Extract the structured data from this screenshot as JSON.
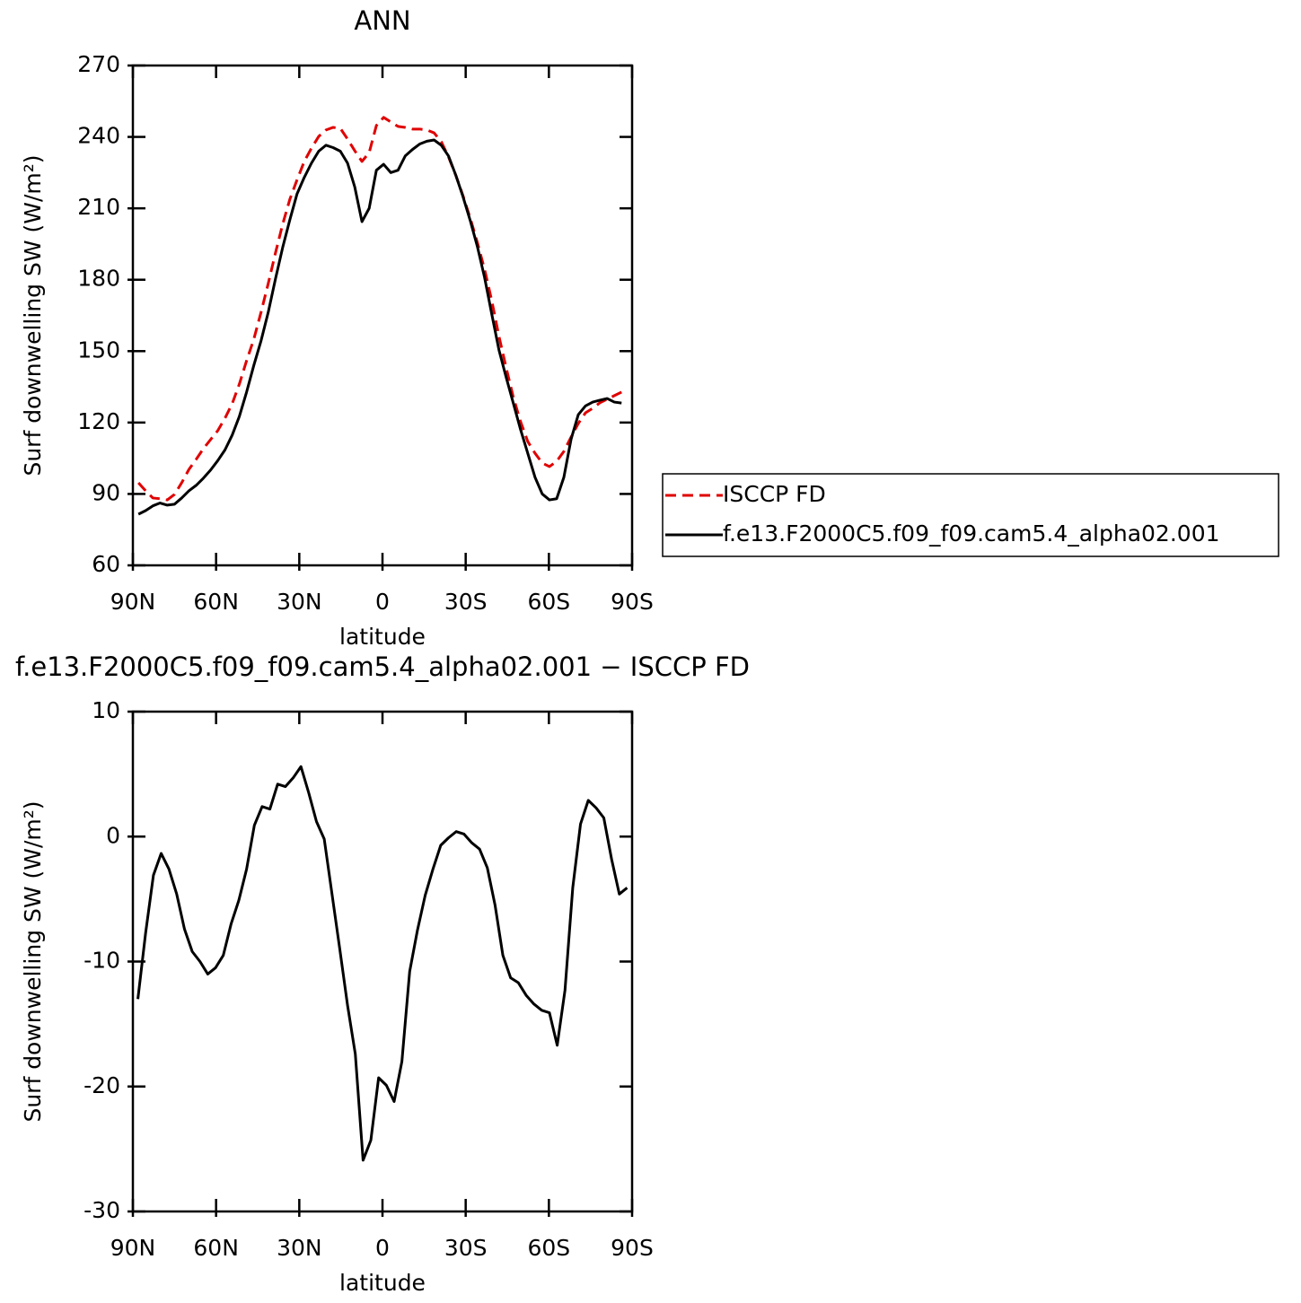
{
  "chart_data": [
    {
      "type": "line",
      "title": "ANN",
      "xlabel": "latitude",
      "ylabel": "Surf downwelling SW (W/m²)",
      "xlim": [
        90,
        -90
      ],
      "xticks": [
        {
          "value": 90,
          "label": "90N"
        },
        {
          "value": 60,
          "label": "60N"
        },
        {
          "value": 30,
          "label": "30N"
        },
        0,
        {
          "value": -30,
          "label": "30S"
        },
        {
          "value": -60,
          "label": "60S"
        },
        {
          "value": -90,
          "label": "90S"
        }
      ],
      "ylim": [
        60,
        270
      ],
      "yticks": [
        60,
        90,
        120,
        150,
        180,
        210,
        240,
        270
      ],
      "legend": "right",
      "x": [
        88,
        85.4,
        82.8,
        80.2,
        77.6,
        75,
        72.4,
        69.8,
        67.2,
        64.6,
        62,
        59.4,
        56.8,
        54.2,
        51.6,
        49,
        46.4,
        43.8,
        41.2,
        38.6,
        36,
        33.4,
        30.8,
        28.2,
        25.6,
        23,
        20.4,
        17.8,
        15.2,
        12.6,
        10,
        7.4,
        4.8,
        2.2,
        -0.4,
        -3,
        -5.6,
        -8.2,
        -10.8,
        -13.4,
        -16,
        -18.6,
        -21.2,
        -23.8,
        -26.4,
        -29,
        -31.6,
        -34.2,
        -36.8,
        -39.4,
        -42,
        -44.6,
        -47.2,
        -49.8,
        -52.4,
        -55,
        -57.6,
        -60.2,
        -62.8,
        -65.4,
        -68,
        -70.6,
        -73.2,
        -75.8,
        -78.4,
        -81,
        -83.6,
        -86.2
      ],
      "series": [
        {
          "name": "ISCCP FD",
          "color": "#e00000",
          "dash": true,
          "values": [
            94.7,
            91.3,
            88.3,
            88,
            87.5,
            89.8,
            94.7,
            100.3,
            104.5,
            109,
            112.8,
            116.6,
            121.8,
            127.9,
            136.2,
            146,
            155,
            166.3,
            178.4,
            191.2,
            203.3,
            213.8,
            222,
            229.7,
            235.3,
            240.2,
            242.9,
            244,
            243.6,
            239.1,
            234.2,
            229.7,
            233.4,
            244.8,
            248.2,
            246.3,
            244.4,
            244,
            243.3,
            243.3,
            242.9,
            241.7,
            238,
            231.6,
            224,
            215.4,
            206,
            195.7,
            184.4,
            171.2,
            156.2,
            143,
            130.5,
            120.3,
            112,
            107.1,
            103,
            101.5,
            103.7,
            107.9,
            113.9,
            119.6,
            124.1,
            126,
            128.3,
            129.8,
            131.3,
            132.8
          ]
        },
        {
          "name": "f.e13.F2000C5.f09_f09.cam5.4_alpha02.001",
          "color": "#000000",
          "dash": false,
          "values": [
            81.5,
            83,
            85,
            86.2,
            85.3,
            85.7,
            88.3,
            91.3,
            93.6,
            96.6,
            100,
            104,
            108.5,
            114.7,
            122.6,
            132.8,
            144,
            154.3,
            166.3,
            180.3,
            193.5,
            205.2,
            216.1,
            223,
            229,
            234,
            236.5,
            235.5,
            234,
            229,
            219,
            204.4,
            210,
            226,
            228.5,
            225,
            226,
            232,
            234.7,
            237,
            238.2,
            238.7,
            236.5,
            232,
            224,
            215,
            205,
            194,
            181,
            165.6,
            150.5,
            139,
            128,
            117,
            107,
            97,
            90,
            87.5,
            88,
            97,
            113,
            123.3,
            127,
            128.6,
            129.4,
            130.1,
            128.6,
            128.2
          ]
        }
      ]
    },
    {
      "type": "line",
      "title": "f.e13.F2000C5.f09_f09.cam5.4_alpha02.001 − ISCCP FD",
      "xlabel": "latitude",
      "ylabel": "Surf downwelling SW (W/m²)",
      "xlim": [
        90,
        -90
      ],
      "xticks": [
        {
          "value": 90,
          "label": "90N"
        },
        {
          "value": 60,
          "label": "60N"
        },
        {
          "value": 30,
          "label": "30N"
        },
        0,
        {
          "value": -30,
          "label": "30S"
        },
        {
          "value": -60,
          "label": "60S"
        },
        {
          "value": -90,
          "label": "90S"
        }
      ],
      "ylim": [
        -30,
        10
      ],
      "yticks": [
        -30,
        -20,
        -10,
        0,
        10
      ],
      "x": [
        88.2,
        85.4,
        82.6,
        79.8,
        77,
        74.2,
        71.4,
        68.6,
        65.8,
        63,
        60.2,
        57.4,
        54.6,
        51.8,
        49,
        46.2,
        43.4,
        40.6,
        37.8,
        35,
        32.2,
        29.4,
        26.6,
        23.8,
        21,
        18.2,
        15.4,
        12.6,
        9.8,
        7,
        4.2,
        1.4,
        -1.4,
        -4.2,
        -7,
        -9.8,
        -12.6,
        -15.4,
        -18.2,
        -21,
        -23.8,
        -26.6,
        -29.4,
        -32.2,
        -35,
        -37.8,
        -40.6,
        -43.4,
        -46.2,
        -49,
        -51.8,
        -54.6,
        -57.4,
        -60.2,
        -63,
        -65.8,
        -68.6,
        -71.4,
        -74.2,
        -77,
        -79.8,
        -82.6,
        -85.4,
        -88.2
      ],
      "series": [
        {
          "color": "#000000",
          "dash": false,
          "values": [
            -13,
            -7.7,
            -3.1,
            -1.35,
            -2.6,
            -4.6,
            -7.4,
            -9.2,
            -10,
            -11,
            -10.5,
            -9.5,
            -7,
            -5.1,
            -2.6,
            0.9,
            2.4,
            2.2,
            4.2,
            4,
            4.7,
            5.6,
            3.5,
            1.2,
            -0.2,
            -4.6,
            -9,
            -13.5,
            -17.4,
            -25.9,
            -24.3,
            -19.3,
            -19.9,
            -21.2,
            -18,
            -10.8,
            -7.5,
            -4.7,
            -2.6,
            -0.7,
            -0.1,
            0.4,
            0.2,
            -0.5,
            -1,
            -2.5,
            -5.5,
            -9.5,
            -11.3,
            -11.7,
            -12.7,
            -13.4,
            -13.9,
            -14.1,
            -16.7,
            -12.3,
            -4.1,
            1,
            2.9,
            2.3,
            1.5,
            -1.8,
            -4.6,
            -4.1
          ]
        }
      ]
    }
  ]
}
